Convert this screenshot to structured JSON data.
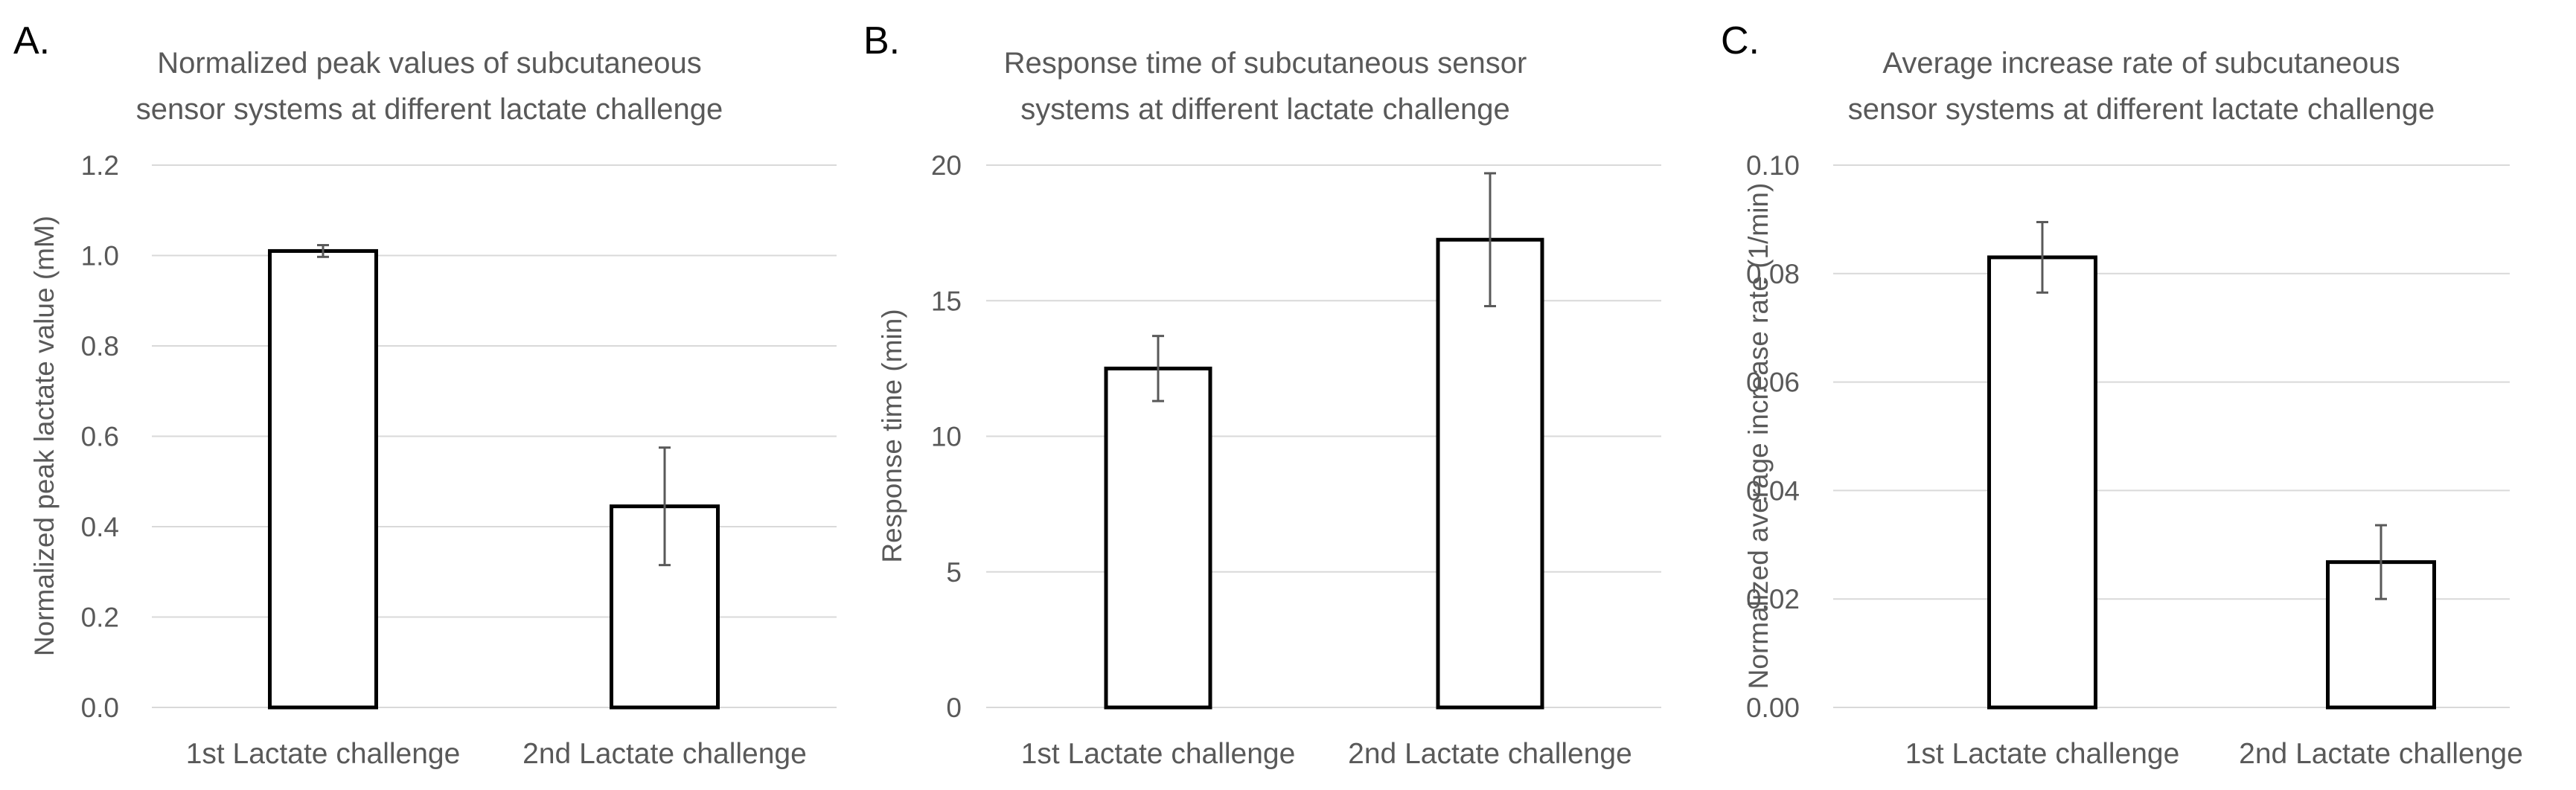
{
  "chart_data": [
    {
      "type": "bar",
      "panel_label": "A.",
      "title": [
        "Normalized peak values of subcutaneous",
        "sensor systems at different lactate challenge"
      ],
      "ylabel": "Normalized peak lactate value (mM)",
      "categories": [
        "1st Lactate challenge",
        "2nd Lactate challenge"
      ],
      "values": [
        1.01,
        0.445
      ],
      "errors": [
        0.013,
        0.13
      ],
      "ylim": [
        0,
        1.2
      ],
      "yticks": [
        0,
        0.2,
        0.4,
        0.6,
        0.8,
        1.0,
        1.2
      ],
      "ytick_labels": [
        "0.0",
        "0.2",
        "0.4",
        "0.6",
        "0.8",
        "1.0",
        "1.2"
      ],
      "grid": true,
      "legend": "none"
    },
    {
      "type": "bar",
      "panel_label": "B.",
      "title": [
        "Response time of subcutaneous sensor",
        "systems at different lactate challenge"
      ],
      "ylabel": "Response time (min)",
      "categories": [
        "1st Lactate challenge",
        "2nd Lactate challenge"
      ],
      "values": [
        12.5,
        17.25
      ],
      "errors": [
        1.2,
        2.45
      ],
      "ylim": [
        0,
        20
      ],
      "yticks": [
        0,
        5,
        10,
        15,
        20
      ],
      "ytick_labels": [
        "0",
        "5",
        "10",
        "15",
        "20"
      ],
      "grid": true,
      "legend": "none"
    },
    {
      "type": "bar",
      "panel_label": "C.",
      "title": [
        "Average increase rate of subcutaneous",
        "sensor systems at different lactate challenge"
      ],
      "ylabel": "Normalized average increase rate (1/min)",
      "categories": [
        "1st Lactate challenge",
        "2nd Lactate challenge"
      ],
      "values": [
        0.083,
        0.0268
      ],
      "errors": [
        0.0065,
        0.0068
      ],
      "ylim": [
        0,
        0.1
      ],
      "yticks": [
        0,
        0.02,
        0.04,
        0.06,
        0.08,
        0.1
      ],
      "ytick_labels": [
        "0.00",
        "0.02",
        "0.04",
        "0.06",
        "0.08",
        "0.10"
      ],
      "grid": true,
      "legend": "none"
    }
  ]
}
